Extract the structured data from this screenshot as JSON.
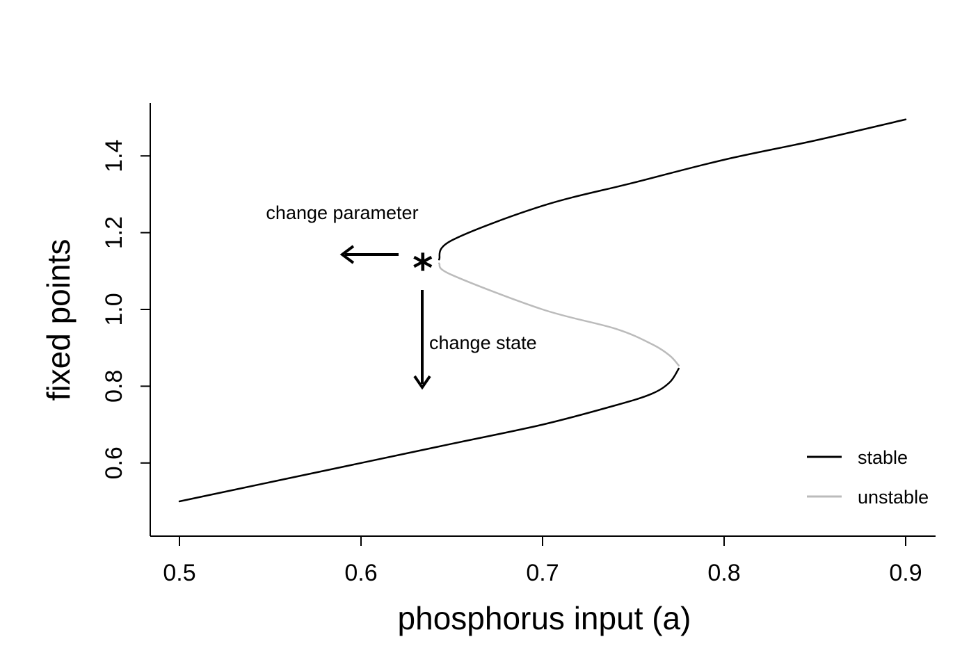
{
  "chart_data": {
    "type": "line",
    "title": "",
    "xlabel": "phosphorus input (a)",
    "ylabel": "fixed points",
    "xlim": [
      0.5,
      0.9
    ],
    "ylim": [
      0.5,
      1.5
    ],
    "x_ticks": [
      "0.5",
      "0.6",
      "0.7",
      "0.8",
      "0.9"
    ],
    "y_ticks": [
      "0.6",
      "0.8",
      "1.0",
      "1.2",
      "1.4"
    ],
    "grid": false,
    "legend_position": "bottom-right",
    "series": [
      {
        "name": "stable",
        "color": "#000000",
        "branches": [
          {
            "x": [
              0.5,
              0.55,
              0.6,
              0.65,
              0.7,
              0.74,
              0.76,
              0.77,
              0.775
            ],
            "y": [
              0.5,
              0.55,
              0.6,
              0.65,
              0.7,
              0.75,
              0.78,
              0.81,
              0.846
            ]
          },
          {
            "x": [
              0.643,
              0.65,
              0.7,
              0.75,
              0.8,
              0.85,
              0.9
            ],
            "y": [
              1.13,
              1.18,
              1.27,
              1.33,
              1.39,
              1.44,
              1.495
            ]
          }
        ]
      },
      {
        "name": "unstable",
        "color": "#bbbbbb",
        "branches": [
          {
            "x": [
              0.643,
              0.65,
              0.7,
              0.74,
              0.76,
              0.77,
              0.775
            ],
            "y": [
              1.12,
              1.09,
              1.0,
              0.95,
              0.91,
              0.88,
              0.854
            ]
          }
        ]
      }
    ],
    "annotations": {
      "marker": "*",
      "marker_point": [
        0.634,
        1.12
      ],
      "param_arrow_label": "change parameter",
      "state_arrow_label": "change state"
    }
  }
}
